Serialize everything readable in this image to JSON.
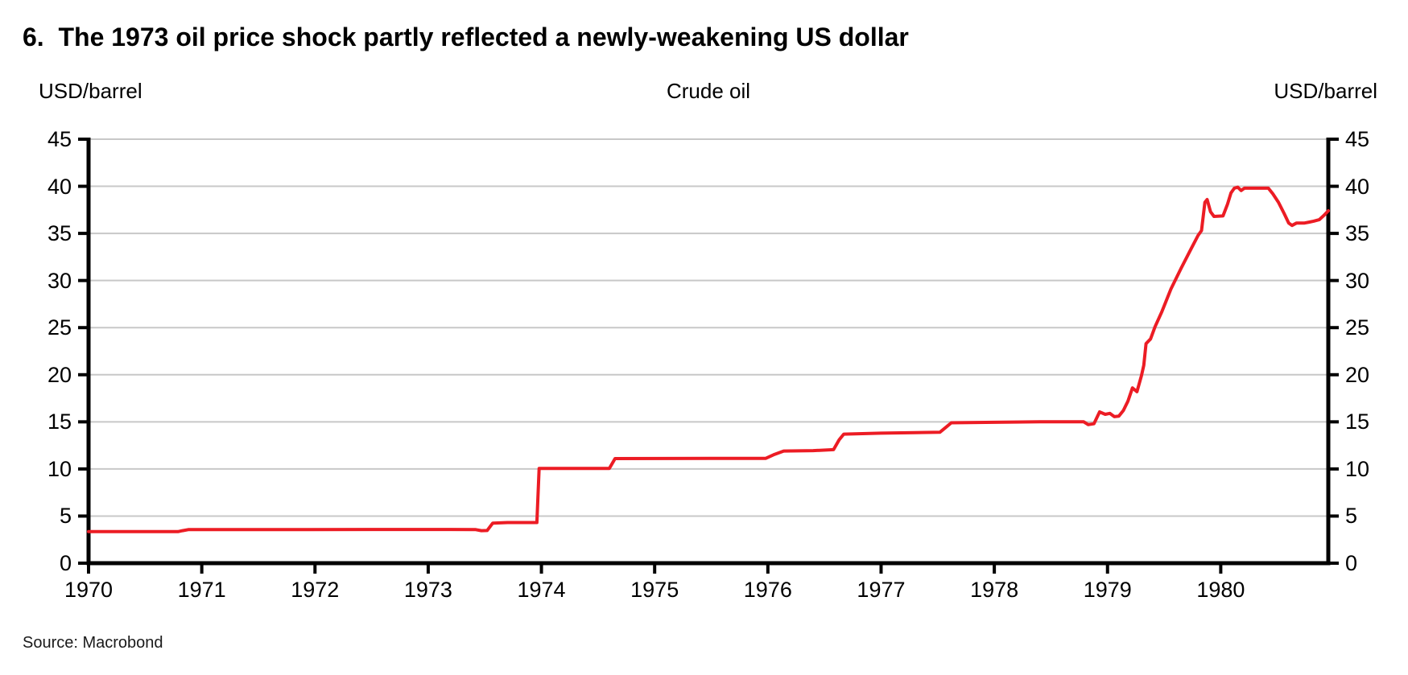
{
  "title": "6.  The 1973 oil price shock partly reflected a newly-weakening US dollar",
  "header": {
    "left_unit": "USD/barrel",
    "center_label": "Crude oil",
    "right_unit": "USD/barrel"
  },
  "source": "Source: Macrobond",
  "colors": {
    "line": "#EC1C24",
    "grid": "#C8C8C8",
    "axis": "#000000",
    "text": "#000000"
  },
  "chart_data": {
    "type": "line",
    "title": "Crude oil",
    "ylabel_left": "USD/barrel",
    "ylabel_right": "USD/barrel",
    "ylim": [
      0,
      45
    ],
    "y_ticks": [
      0,
      5,
      10,
      15,
      20,
      25,
      30,
      35,
      40,
      45
    ],
    "x_range": [
      1970,
      1980.95
    ],
    "x_ticks": [
      1970,
      1971,
      1972,
      1973,
      1974,
      1975,
      1976,
      1977,
      1978,
      1979,
      1980
    ],
    "grid": "horizontal-only",
    "legend": "none",
    "series": [
      {
        "name": "Crude oil (USD/barrel)",
        "color": "#EC1C24",
        "points": [
          [
            1970.0,
            3.35
          ],
          [
            1970.79,
            3.35
          ],
          [
            1970.83,
            3.45
          ],
          [
            1970.88,
            3.56
          ],
          [
            1971.5,
            3.56
          ],
          [
            1972.5,
            3.58
          ],
          [
            1973.2,
            3.58
          ],
          [
            1973.42,
            3.56
          ],
          [
            1973.47,
            3.45
          ],
          [
            1973.52,
            3.47
          ],
          [
            1973.57,
            4.25
          ],
          [
            1973.7,
            4.31
          ],
          [
            1973.96,
            4.31
          ],
          [
            1973.98,
            10.05
          ],
          [
            1974.6,
            10.05
          ],
          [
            1974.65,
            11.1
          ],
          [
            1975.5,
            11.12
          ],
          [
            1975.98,
            11.12
          ],
          [
            1976.05,
            11.5
          ],
          [
            1976.14,
            11.9
          ],
          [
            1976.4,
            11.95
          ],
          [
            1976.58,
            12.05
          ],
          [
            1976.63,
            13.1
          ],
          [
            1976.67,
            13.7
          ],
          [
            1977.0,
            13.8
          ],
          [
            1977.3,
            13.85
          ],
          [
            1977.52,
            13.9
          ],
          [
            1977.57,
            14.4
          ],
          [
            1977.62,
            14.9
          ],
          [
            1978.0,
            14.95
          ],
          [
            1978.4,
            15.0
          ],
          [
            1978.79,
            15.0
          ],
          [
            1978.83,
            14.7
          ],
          [
            1978.88,
            14.8
          ],
          [
            1978.93,
            16.05
          ],
          [
            1978.98,
            15.8
          ],
          [
            1979.02,
            15.9
          ],
          [
            1979.06,
            15.55
          ],
          [
            1979.1,
            15.6
          ],
          [
            1979.14,
            16.2
          ],
          [
            1979.18,
            17.2
          ],
          [
            1979.22,
            18.6
          ],
          [
            1979.26,
            18.2
          ],
          [
            1979.3,
            19.9
          ],
          [
            1979.32,
            21.0
          ],
          [
            1979.34,
            23.3
          ],
          [
            1979.38,
            23.8
          ],
          [
            1979.42,
            25.1
          ],
          [
            1979.48,
            26.7
          ],
          [
            1979.56,
            29.1
          ],
          [
            1979.65,
            31.3
          ],
          [
            1979.74,
            33.4
          ],
          [
            1979.8,
            34.8
          ],
          [
            1979.83,
            35.3
          ],
          [
            1979.86,
            38.3
          ],
          [
            1979.88,
            38.6
          ],
          [
            1979.91,
            37.3
          ],
          [
            1979.94,
            36.8
          ],
          [
            1980.02,
            36.85
          ],
          [
            1980.06,
            38.1
          ],
          [
            1980.09,
            39.3
          ],
          [
            1980.12,
            39.8
          ],
          [
            1980.15,
            39.9
          ],
          [
            1980.18,
            39.55
          ],
          [
            1980.21,
            39.8
          ],
          [
            1980.42,
            39.8
          ],
          [
            1980.46,
            39.2
          ],
          [
            1980.51,
            38.3
          ],
          [
            1980.56,
            37.1
          ],
          [
            1980.6,
            36.1
          ],
          [
            1980.63,
            35.85
          ],
          [
            1980.67,
            36.1
          ],
          [
            1980.74,
            36.1
          ],
          [
            1980.78,
            36.2
          ],
          [
            1980.82,
            36.3
          ],
          [
            1980.87,
            36.45
          ],
          [
            1980.91,
            36.9
          ],
          [
            1980.95,
            37.4
          ]
        ]
      }
    ]
  }
}
